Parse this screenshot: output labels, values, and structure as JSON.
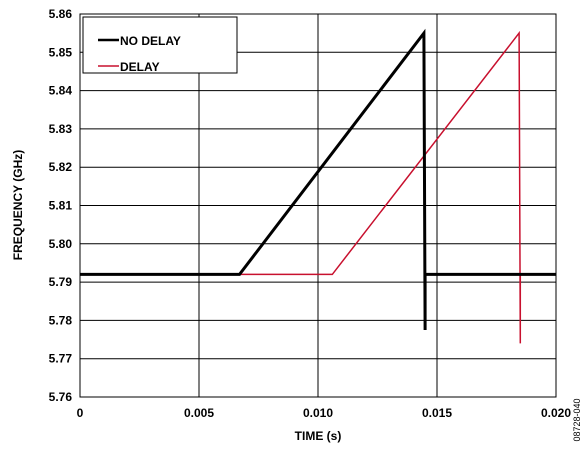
{
  "chart_data": {
    "type": "line",
    "xlabel": "TIME (s)",
    "ylabel": "FREQUENCY (GHz)",
    "xlim": [
      0,
      0.02
    ],
    "ylim": [
      5.76,
      5.86
    ],
    "x_ticks": [
      0,
      0.005,
      0.01,
      0.015,
      0.02
    ],
    "x_tick_labels": [
      "0",
      "0.005",
      "0.010",
      "0.015",
      "0.020"
    ],
    "y_ticks": [
      5.76,
      5.77,
      5.78,
      5.79,
      5.8,
      5.81,
      5.82,
      5.83,
      5.84,
      5.85,
      5.86
    ],
    "y_tick_labels": [
      "5.76",
      "5.77",
      "5.78",
      "5.79",
      "5.80",
      "5.81",
      "5.82",
      "5.83",
      "5.84",
      "5.85",
      "5.86"
    ],
    "grid": true,
    "legend_position": "top-left",
    "figure_id": "08728-040",
    "series": [
      {
        "name": "NO DELAY",
        "color": "#000000",
        "x": [
          0,
          0.0067,
          0.01445,
          0.01445,
          0.0145,
          0.0145,
          0.02
        ],
        "y": [
          5.792,
          5.792,
          5.855,
          5.855,
          5.7775,
          5.792,
          5.792
        ]
      },
      {
        "name": "DELAY",
        "color": "#c8102e",
        "x": [
          0,
          0.0106,
          0.01845,
          0.01845,
          0.0185,
          0.0185,
          0.02
        ],
        "y": [
          5.792,
          5.792,
          5.855,
          5.855,
          5.774,
          5.792,
          5.792
        ]
      }
    ]
  }
}
